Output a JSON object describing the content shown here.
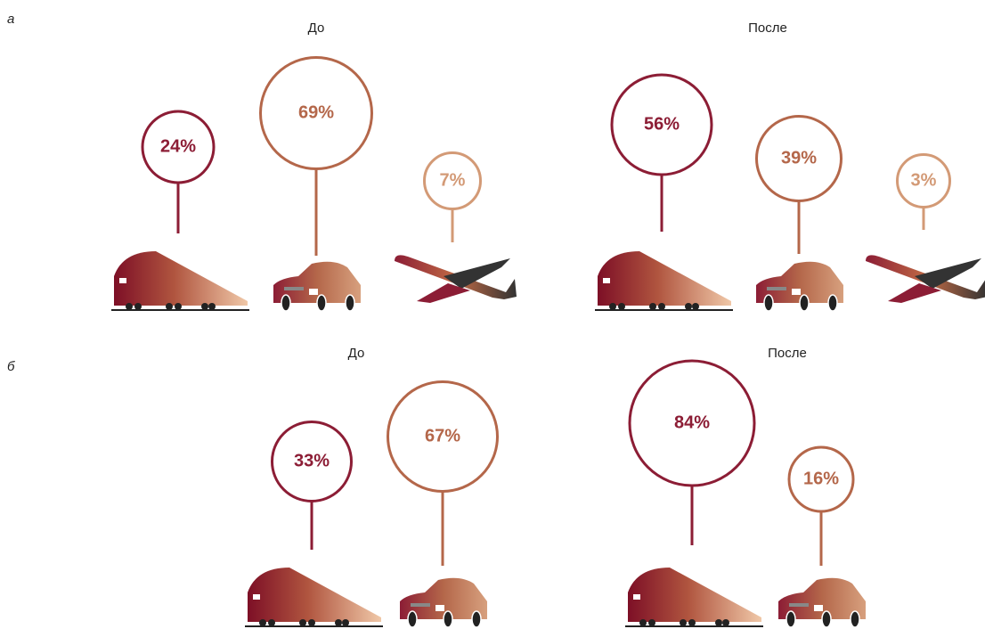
{
  "panel_labels": [
    "а",
    "б"
  ],
  "chart_data": [
    {
      "type": "lollipop",
      "title": "До",
      "categories": [
        null,
        null,
        null
      ],
      "values": [
        24,
        69,
        7
      ],
      "value_labels": [
        "24%",
        "69%",
        "7%"
      ],
      "colors": [
        "#8c1d35",
        "#b4674a",
        "#d39a76"
      ]
    },
    {
      "type": "lollipop",
      "title": "После",
      "categories": [
        null,
        null,
        null
      ],
      "values": [
        56,
        39,
        3
      ],
      "value_labels": [
        "56%",
        "39%",
        "3%"
      ],
      "colors": [
        "#8c1d35",
        "#b4674a",
        "#d39a76"
      ]
    },
    {
      "type": "lollipop",
      "title": "До",
      "categories": [
        null,
        null
      ],
      "values": [
        33,
        67
      ],
      "value_labels": [
        "33%",
        "67%"
      ],
      "colors": [
        "#8c1d35",
        "#b4674a"
      ]
    },
    {
      "type": "lollipop",
      "title": "После",
      "categories": [
        null,
        null
      ],
      "values": [
        84,
        16
      ],
      "value_labels": [
        "84%",
        "16%"
      ],
      "colors": [
        "#8c1d35",
        "#b4674a"
      ]
    }
  ]
}
